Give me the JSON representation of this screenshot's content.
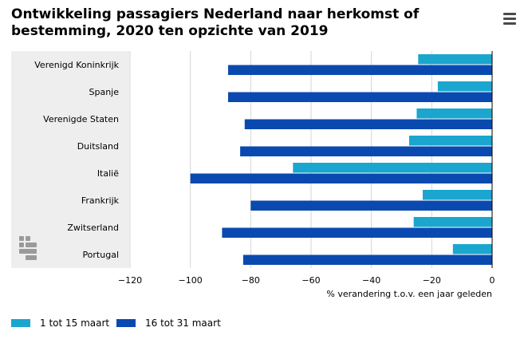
{
  "title": "Ontwikkeling passagiers Nederland naar herkomst of bestemming, 2020 ten opzichte van 2019",
  "menu_icon": "hamburger-menu-icon",
  "logo_icon": "cbs-logo-icon",
  "colors": {
    "series1": "#1aa6cf",
    "series2": "#0a4ab0",
    "panel": "#eeeeee",
    "grid": "#d6d6d6",
    "axis": "#000000"
  },
  "chart_data": {
    "type": "bar",
    "orientation": "horizontal",
    "categories": [
      "Verenigd Koninkrijk",
      "Spanje",
      "Verenigde Staten",
      "Duitsland",
      "Italië",
      "Frankrijk",
      "Zwitserland",
      "Portugal"
    ],
    "series": [
      {
        "name": "1 tot 15 maart",
        "values": [
          -24.5,
          -18,
          -25,
          -27.5,
          -66,
          -23,
          -26,
          -13
        ]
      },
      {
        "name": "16 tot 31 maart",
        "values": [
          -87.5,
          -87.5,
          -82,
          -83.5,
          -100,
          -80,
          -89.5,
          -82.5
        ]
      }
    ],
    "xlabel": "% verandering t.o.v. een jaar geleden",
    "xlim": [
      -120,
      0
    ],
    "xticks": [
      -120,
      -100,
      -80,
      -60,
      -40,
      -20,
      0
    ],
    "grid": true,
    "legend_position": "bottom-left"
  }
}
